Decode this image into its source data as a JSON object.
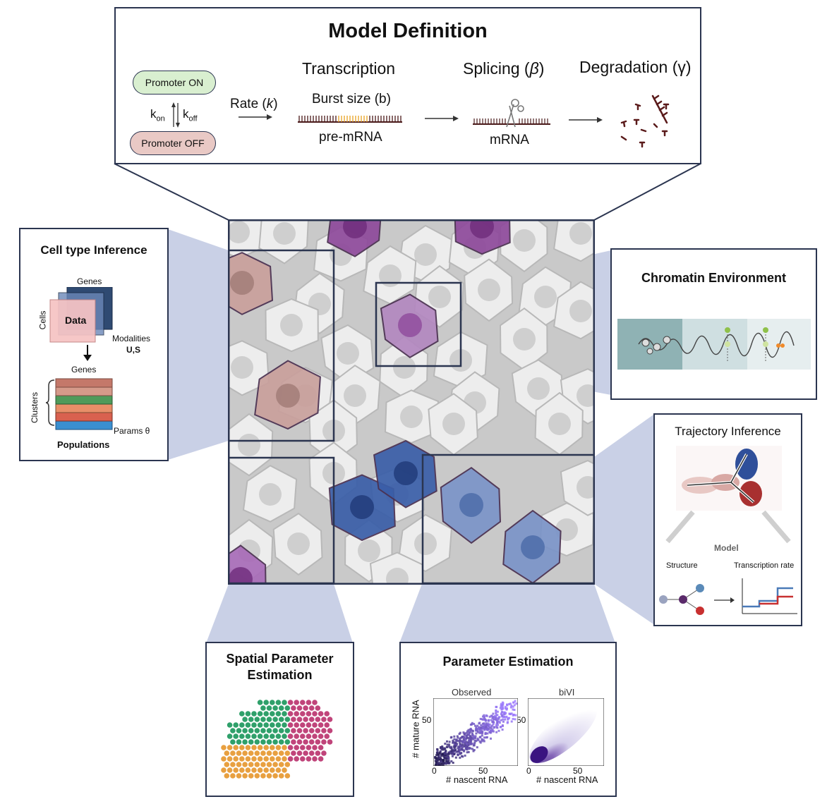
{
  "model": {
    "title": "Model Definition",
    "promoter_on": "Promoter ON",
    "promoter_off": "Promoter OFF",
    "k_on": "on",
    "k_off": "off",
    "k": "k",
    "rate_label": "Rate (",
    "rate_k": "k",
    "rate_close": ")",
    "transcription": "Transcription",
    "burst_size": "Burst size (b)",
    "pre_mrna": "pre-mRNA",
    "splicing": "Splicing (",
    "beta": "β",
    "splicing_close": ")",
    "mrna": "mRNA",
    "degradation": "Degradation (γ)"
  },
  "cell_type": {
    "title": "Cell type Inference",
    "genes_top": "Genes",
    "cells": "Cells",
    "data": "Data",
    "modalities": "Modalities",
    "us": "U,S",
    "genes_bottom": "Genes",
    "clusters": "Clusters",
    "params": "Params θ",
    "populations": "Populations"
  },
  "chromatin": {
    "title": "Chromatin Environment"
  },
  "trajectory": {
    "title": "Trajectory Inference",
    "model": "Model",
    "structure": "Structure",
    "transcription_rate": "Transcription rate"
  },
  "spatial": {
    "title_line1": "Spatial Parameter",
    "title_line2": "Estimation"
  },
  "param_est": {
    "title": "Parameter Estimation",
    "observed": "Observed",
    "bivi": "biVI",
    "ylabel": "# mature RNA",
    "xlabel": "# nascent RNA",
    "tick_50": "50",
    "tick_0": "0"
  },
  "colors": {
    "frame": "#2b3550",
    "connector": "#c9d0e6",
    "purple": "#8e4a9b",
    "rose": "#b98a88",
    "blue": "#3a5ea8",
    "cell_gray": "#e6e6e6"
  }
}
